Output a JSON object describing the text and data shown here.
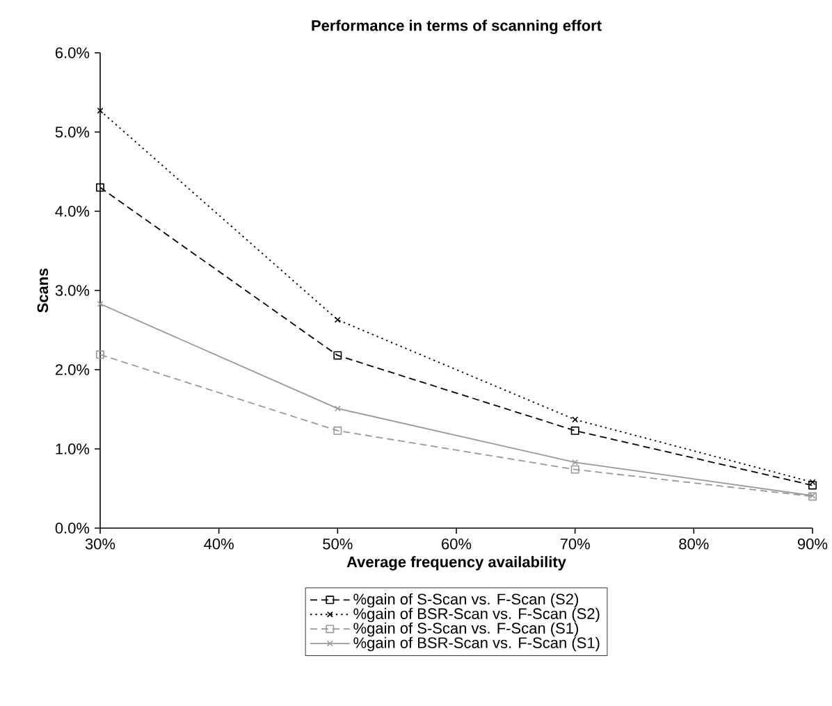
{
  "chart_data": {
    "type": "line",
    "title": "Performance in terms of scanning effort",
    "xlabel": "Average frequency availability",
    "ylabel": "Scans",
    "x": [
      30,
      50,
      70,
      90
    ],
    "series": [
      {
        "name": "%gain of S-Scan vs. F-Scan (S2)",
        "color": "#000000",
        "marker": "square",
        "line_style": "dashed",
        "values": [
          4.3,
          2.18,
          1.23,
          0.54
        ]
      },
      {
        "name": "%gain of BSR-Scan vs. F-Scan (S2)",
        "color": "#000000",
        "marker": "cross",
        "line_style": "dotted",
        "values": [
          5.27,
          2.63,
          1.37,
          0.58
        ]
      },
      {
        "name": "%gain of S-Scan vs. F-Scan (S1)",
        "color": "#999999",
        "marker": "square",
        "line_style": "dashed",
        "values": [
          2.19,
          1.23,
          0.74,
          0.4
        ]
      },
      {
        "name": "%gain of BSR-Scan vs. F-Scan (S1)",
        "color": "#999999",
        "marker": "cross",
        "line_style": "solid",
        "values": [
          2.83,
          1.51,
          0.83,
          0.41
        ]
      }
    ],
    "xlim": [
      30,
      90
    ],
    "xticks": [
      {
        "value": 30,
        "label": "30%"
      },
      {
        "value": 40,
        "label": "40%"
      },
      {
        "value": 50,
        "label": "50%"
      },
      {
        "value": 60,
        "label": "60%"
      },
      {
        "value": 70,
        "label": "70%"
      },
      {
        "value": 80,
        "label": "80%"
      },
      {
        "value": 90,
        "label": "90%"
      }
    ],
    "ylim": [
      0,
      6
    ],
    "yticks": [
      {
        "value": 0,
        "label": "0.0%"
      },
      {
        "value": 1,
        "label": "1.0%"
      },
      {
        "value": 2,
        "label": "2.0%"
      },
      {
        "value": 3,
        "label": "3.0%"
      },
      {
        "value": 4,
        "label": "4.0%"
      },
      {
        "value": 5,
        "label": "5.0%"
      },
      {
        "value": 6,
        "label": "6.0%"
      }
    ],
    "grid": false,
    "legend": "bottom"
  }
}
